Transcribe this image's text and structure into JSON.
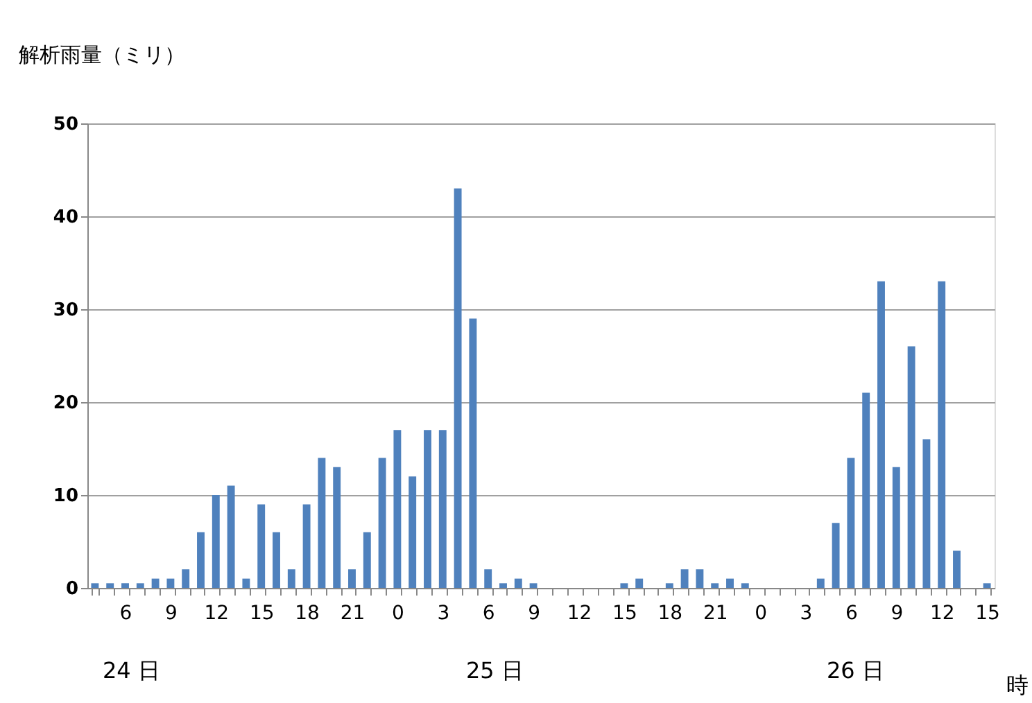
{
  "chart_data": {
    "type": "bar",
    "ylabel": "解析雨量（ミリ）",
    "xlabel": "時",
    "categories": [
      null,
      null,
      "6",
      null,
      null,
      "9",
      null,
      null,
      "12",
      null,
      null,
      "15",
      null,
      null,
      "18",
      null,
      null,
      "21",
      null,
      null,
      "0",
      null,
      null,
      "3",
      null,
      null,
      "6",
      null,
      null,
      "9",
      null,
      null,
      "12",
      null,
      null,
      "15",
      null,
      null,
      "18",
      null,
      null,
      "21",
      null,
      null,
      "0",
      null,
      null,
      "3",
      null,
      null,
      "6",
      null,
      null,
      "9",
      null,
      null,
      "12",
      null,
      null,
      "15"
    ],
    "values": [
      0.5,
      0.5,
      0.5,
      0.5,
      1,
      1,
      2,
      6,
      10,
      11,
      1,
      9,
      6,
      2,
      9,
      14,
      13,
      2,
      6,
      14,
      17,
      12,
      17,
      17,
      43,
      29,
      2,
      0.5,
      1,
      0.5,
      0,
      0,
      0,
      0,
      0,
      0.5,
      1,
      0,
      0.5,
      2,
      2,
      0.5,
      1,
      0.5,
      0,
      0,
      0,
      0,
      1,
      7,
      14,
      21,
      33,
      13,
      26,
      16,
      33,
      4,
      0,
      0.5
    ],
    "color": "#4f81bd",
    "ylim": [
      0,
      50
    ],
    "yticks": [
      0,
      10,
      20,
      30,
      40,
      50
    ],
    "grid": "y",
    "annotations": [
      "24 日",
      "25 日",
      "26 日"
    ]
  }
}
